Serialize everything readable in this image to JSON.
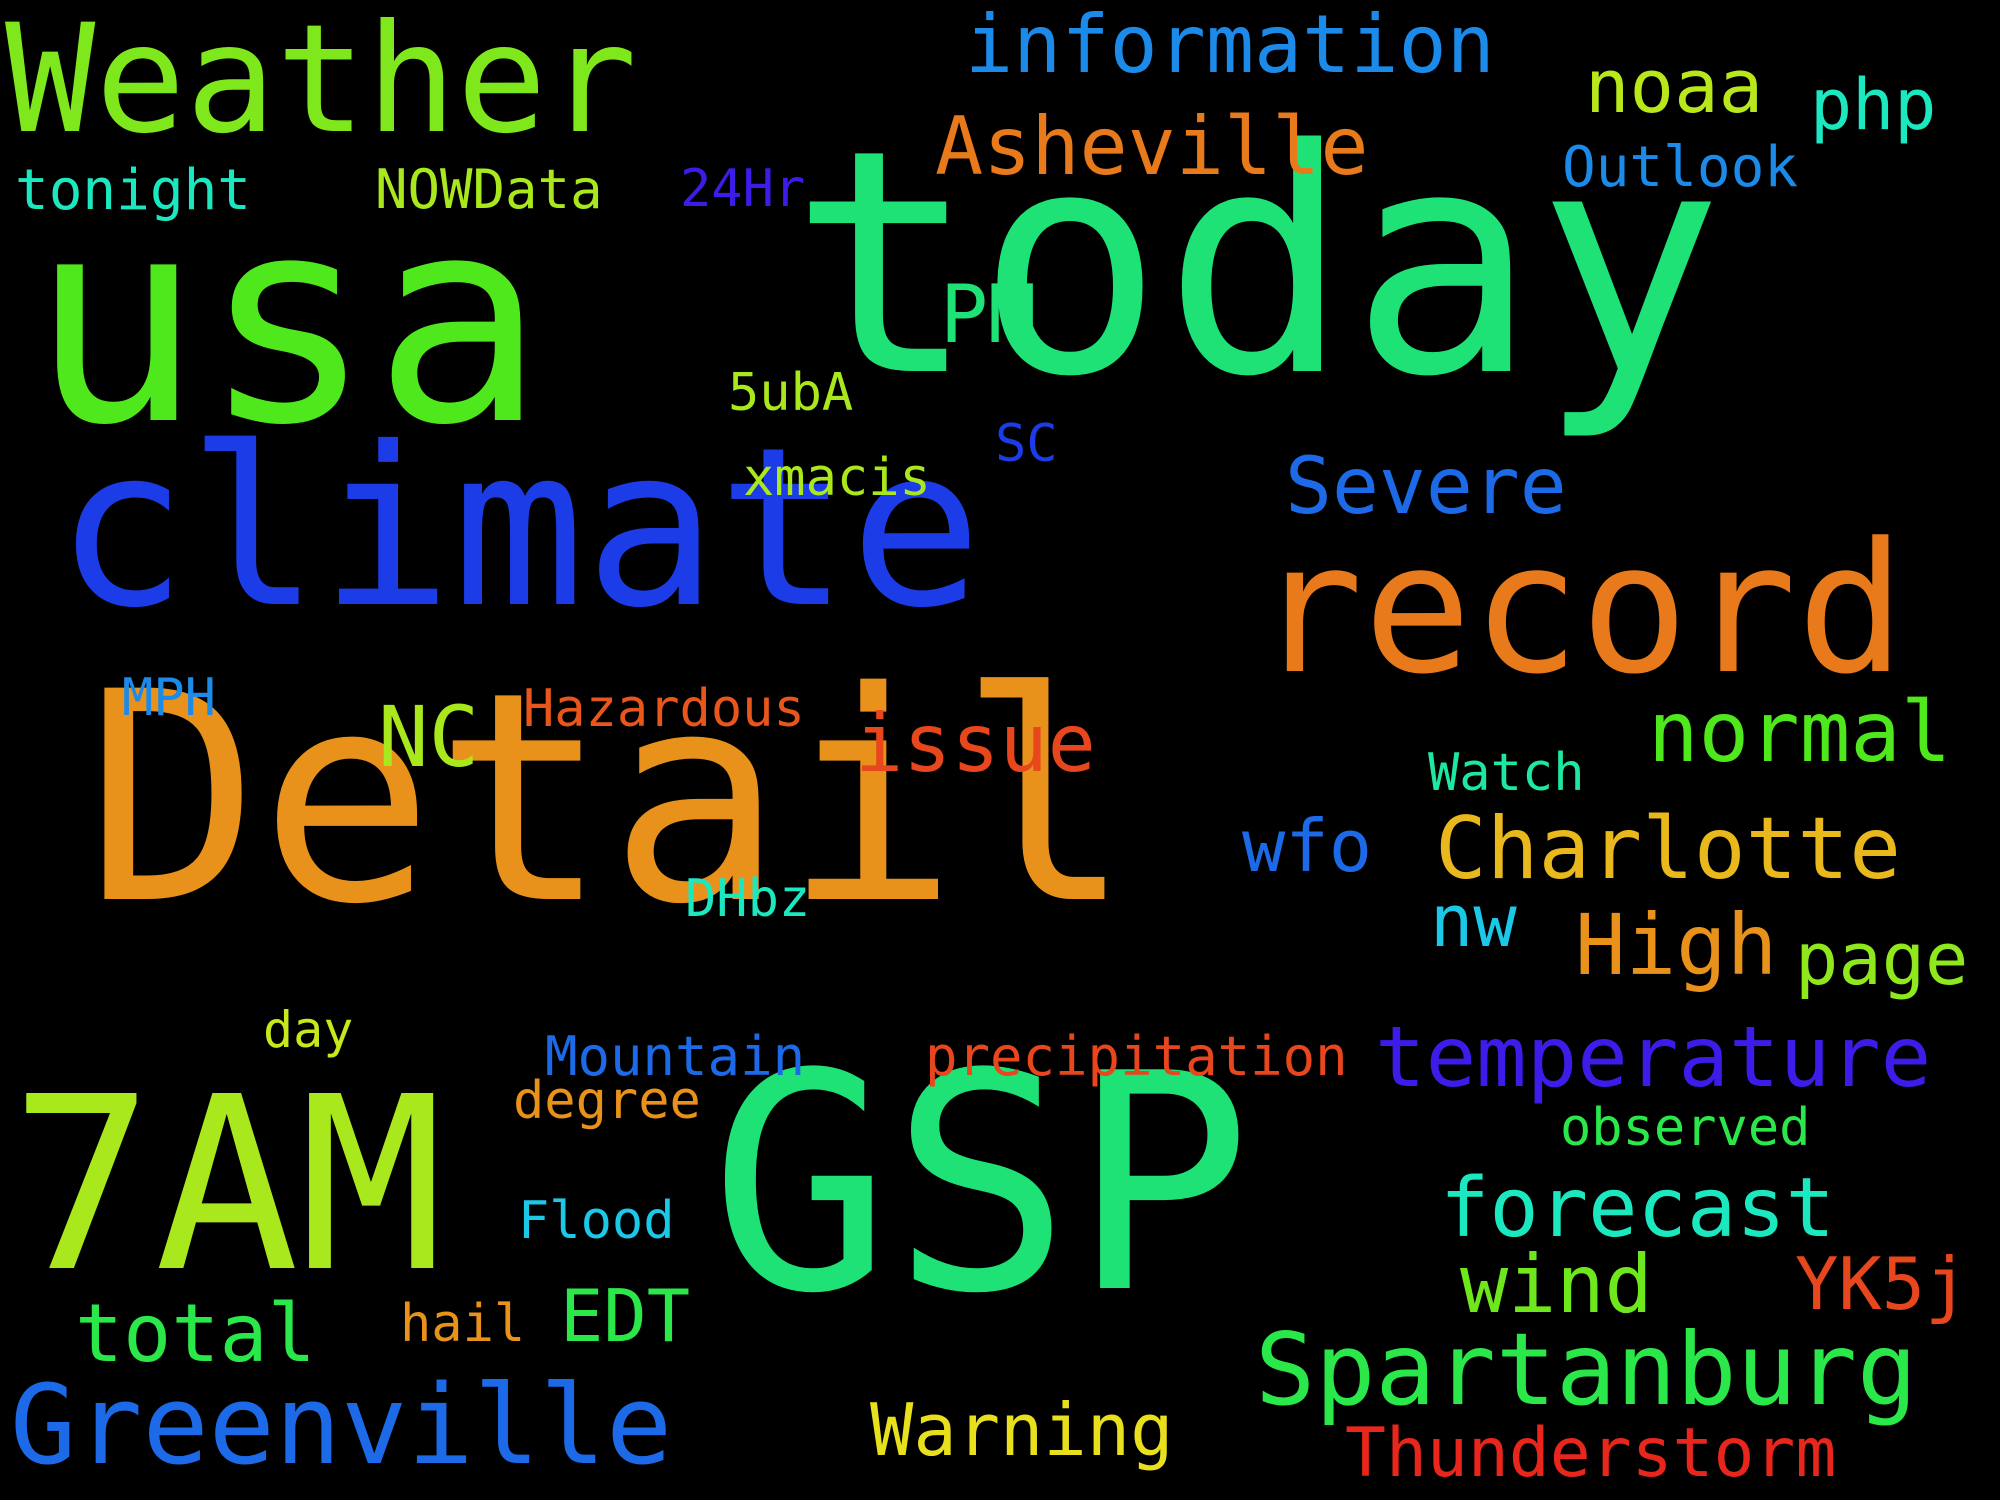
{
  "background": "#000000",
  "words": [
    {
      "text": "Detail",
      "color": "#e8921c"
    },
    {
      "text": "GSP",
      "color": "#1ee276"
    },
    {
      "text": "today",
      "color": "#1ee276"
    },
    {
      "text": "usa",
      "color": "#4ee81c"
    },
    {
      "text": "climate",
      "color": "#1c3ce8"
    },
    {
      "text": "7AM",
      "color": "#a8e81c"
    },
    {
      "text": "record",
      "color": "#e87a1c"
    },
    {
      "text": "Weather",
      "color": "#7ee81c"
    },
    {
      "text": "Greenville",
      "color": "#1c6ae8"
    },
    {
      "text": "Spartanburg",
      "color": "#2ae84a"
    },
    {
      "text": "temperature",
      "color": "#3c1ce8"
    },
    {
      "text": "Charlotte",
      "color": "#e8b81c"
    },
    {
      "text": "forecast",
      "color": "#1ce8c0"
    },
    {
      "text": "Thunderstorm",
      "color": "#e8261c"
    },
    {
      "text": "information",
      "color": "#1c8ae8"
    },
    {
      "text": "Asheville",
      "color": "#e87a1c"
    },
    {
      "text": "normal",
      "color": "#4ee81c"
    },
    {
      "text": "issue",
      "color": "#e8461c"
    },
    {
      "text": "Severe",
      "color": "#1c6ae8"
    },
    {
      "text": "total",
      "color": "#2ae84a"
    },
    {
      "text": "Warning",
      "color": "#e8e01c"
    },
    {
      "text": "High",
      "color": "#e8921c"
    },
    {
      "text": "wind",
      "color": "#6ee81c"
    },
    {
      "text": "PM",
      "color": "#1ee276"
    },
    {
      "text": "noaa",
      "color": "#b8e81c"
    },
    {
      "text": "page",
      "color": "#8ee81c"
    },
    {
      "text": "YK5j",
      "color": "#e8461c"
    },
    {
      "text": "NC",
      "color": "#a8e81c"
    },
    {
      "text": "EDT",
      "color": "#2ae84a"
    },
    {
      "text": "wfo",
      "color": "#1c6ae8"
    },
    {
      "text": "nw",
      "color": "#1cc8e8"
    },
    {
      "text": "php",
      "color": "#1ce8c0"
    },
    {
      "text": "precipitation",
      "color": "#e8461c"
    },
    {
      "text": "Mountain",
      "color": "#1c6ae8"
    },
    {
      "text": "Outlook",
      "color": "#1c8ae8"
    },
    {
      "text": "Hazardous",
      "color": "#e8561c"
    },
    {
      "text": "Watch",
      "color": "#1ee8a0"
    },
    {
      "text": "observed",
      "color": "#2ae84a"
    },
    {
      "text": "NOWData",
      "color": "#a8e81c"
    },
    {
      "text": "degree",
      "color": "#e8921c"
    },
    {
      "text": "tonight",
      "color": "#1ce8c0"
    },
    {
      "text": "Flood",
      "color": "#1cc8e8"
    },
    {
      "text": "xmacis",
      "color": "#a8e81c"
    },
    {
      "text": "5ubA",
      "color": "#a8e81c"
    },
    {
      "text": "DHbz",
      "color": "#1ce8c0"
    },
    {
      "text": "24Hr",
      "color": "#3c1ce8"
    },
    {
      "text": "MPH",
      "color": "#1c8ae8"
    },
    {
      "text": "SC",
      "color": "#1c3ce8"
    },
    {
      "text": "day",
      "color": "#c8e81c"
    },
    {
      "text": "hail",
      "color": "#e8921c"
    }
  ]
}
